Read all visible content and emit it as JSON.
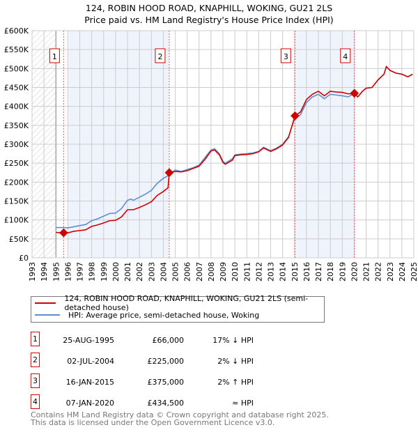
{
  "chart_data": {
    "type": "line",
    "title": "124, ROBIN HOOD ROAD, KNAPHILL, WOKING, GU21 2LS",
    "subtitle": "Price paid vs. HM Land Registry's House Price Index (HPI)",
    "xlim": [
      1993,
      2025
    ],
    "ylim": [
      0,
      600000
    ],
    "yticks": [
      0,
      50000,
      100000,
      150000,
      200000,
      250000,
      300000,
      350000,
      400000,
      450000,
      500000,
      550000,
      600000
    ],
    "ytick_labels": [
      "£0",
      "£50K",
      "£100K",
      "£150K",
      "£200K",
      "£250K",
      "£300K",
      "£350K",
      "£400K",
      "£450K",
      "£500K",
      "£550K",
      "£600K"
    ],
    "xticks": [
      "1993",
      "1994",
      "1995",
      "1996",
      "1997",
      "1998",
      "1999",
      "2000",
      "2001",
      "2002",
      "2003",
      "2004",
      "2005",
      "2006",
      "2007",
      "2008",
      "2009",
      "2010",
      "2011",
      "2012",
      "2013",
      "2014",
      "2015",
      "2016",
      "2017",
      "2018",
      "2019",
      "2020",
      "2021",
      "2022",
      "2023",
      "2024",
      "2025"
    ],
    "grid": true,
    "colors": {
      "property": "#cc0000",
      "hpi": "#5b8fd0",
      "shade": "#eef3fc"
    },
    "series": [
      {
        "name": "HPI: Average price, semi-detached house, Woking",
        "color": "#5b8fd0",
        "x": [
          1995.0,
          1995.6,
          1996,
          1996.5,
          1997,
          1997.5,
          1998,
          1998.5,
          1999,
          1999.5,
          2000,
          2000.5,
          2001,
          2001.3,
          2001.5,
          2002,
          2002.5,
          2003,
          2003.5,
          2004,
          2004.3,
          2004.5,
          2005,
          2005.5,
          2006,
          2006.5,
          2007,
          2007.5,
          2008,
          2008.3,
          2008.7,
          2009,
          2009.2,
          2009.8,
          2010,
          2010.5,
          2011,
          2011.5,
          2012,
          2012.4,
          2012.8,
          2013,
          2013.5,
          2014,
          2014.5,
          2015,
          2015.5,
          2016,
          2016.5,
          2017,
          2017.5,
          2018,
          2018.5,
          2019,
          2019.5,
          2020,
          2020.3,
          2020.7,
          2021,
          2021.5,
          2022,
          2022.5,
          2022.7,
          2023,
          2023.5,
          2024,
          2024.5,
          2024.9
        ],
        "y": [
          80000,
          80000,
          79000,
          82000,
          85000,
          88000,
          98000,
          103000,
          110000,
          117000,
          118000,
          130000,
          152000,
          155000,
          152000,
          160000,
          168000,
          178000,
          197000,
          210000,
          215000,
          221000,
          232000,
          228000,
          233000,
          238000,
          245000,
          265000,
          285000,
          288000,
          275000,
          255000,
          250000,
          262000,
          272000,
          274000,
          275000,
          277000,
          281000,
          292000,
          286000,
          283000,
          290000,
          300000,
          320000,
          368000,
          378000,
          410000,
          425000,
          432000,
          420000,
          432000,
          430000,
          428000,
          425000,
          434000,
          425000,
          440000,
          448000,
          450000,
          470000,
          485000,
          505000,
          495000,
          488000,
          485000,
          478000,
          485000
        ]
      },
      {
        "name": "124, ROBIN HOOD ROAD, KNAPHILL, WOKING, GU21 2LS (semi-detached house)",
        "color": "#cc0000",
        "x": [
          1995.0,
          1995.65,
          1996,
          1996.5,
          1997,
          1997.5,
          1998,
          1998.5,
          1999,
          1999.5,
          2000,
          2000.5,
          2001,
          2001.5,
          2002,
          2002.5,
          2003,
          2003.5,
          2004,
          2004.4,
          2004.5,
          2005,
          2005.5,
          2006,
          2006.5,
          2007,
          2007.5,
          2008,
          2008.3,
          2008.7,
          2009,
          2009.2,
          2009.8,
          2010,
          2010.5,
          2011,
          2011.5,
          2012,
          2012.4,
          2012.8,
          2013,
          2013.5,
          2014,
          2014.5,
          2015.04,
          2015.5,
          2016,
          2016.5,
          2017,
          2017.5,
          2018,
          2018.5,
          2019,
          2019.5,
          2020.02,
          2020.3,
          2020.7,
          2021,
          2021.5,
          2022,
          2022.5,
          2022.7,
          2023,
          2023.5,
          2024,
          2024.5,
          2024.9
        ],
        "y": [
          67000,
          66000,
          66000,
          70000,
          72000,
          74000,
          83000,
          87000,
          92000,
          98000,
          99000,
          108000,
          127000,
          127000,
          133000,
          140000,
          148000,
          165000,
          175000,
          185000,
          225000,
          228000,
          227000,
          230000,
          236000,
          242000,
          260000,
          282000,
          285000,
          272000,
          252000,
          247000,
          258000,
          270000,
          272000,
          273000,
          275000,
          280000,
          290000,
          284000,
          281000,
          288000,
          298000,
          318000,
          375000,
          385000,
          418000,
          432000,
          440000,
          428000,
          440000,
          438000,
          437000,
          433000,
          434500,
          425000,
          440000,
          448000,
          450000,
          470000,
          485000,
          505000,
          495000,
          488000,
          485000,
          478000,
          485000
        ]
      }
    ],
    "sales": [
      {
        "label": "1",
        "date": "25-AUG-1995",
        "price": "£66,000",
        "hpi_rel": "17% ↓ HPI",
        "x": 1995.65,
        "y": 66000
      },
      {
        "label": "2",
        "date": "02-JUL-2004",
        "price": "£225,000",
        "hpi_rel": "2% ↓ HPI",
        "x": 2004.5,
        "y": 225000
      },
      {
        "label": "3",
        "date": "16-JAN-2015",
        "price": "£375,000",
        "hpi_rel": "2% ↑ HPI",
        "x": 2015.04,
        "y": 375000
      },
      {
        "label": "4",
        "date": "07-JAN-2020",
        "price": "£434,500",
        "hpi_rel": "≈ HPI",
        "x": 2020.02,
        "y": 434500
      }
    ],
    "shaded_ranges": [
      [
        1996,
        2004.5
      ],
      [
        2015.04,
        2020.02
      ]
    ],
    "hatched_range": [
      1993,
      1995
    ]
  },
  "legend": {
    "property": "124, ROBIN HOOD ROAD, KNAPHILL, WOKING, GU21 2LS (semi-detached house)",
    "hpi": "HPI: Average price, semi-detached house, Woking"
  },
  "footer": {
    "line1": "Contains HM Land Registry data © Crown copyright and database right 2025.",
    "line2": "This data is licensed under the Open Government Licence v3.0."
  }
}
